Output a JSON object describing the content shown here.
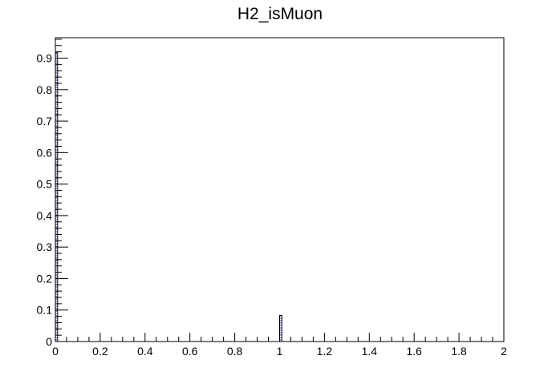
{
  "chart_data": {
    "type": "bar",
    "title": "H2_isMuon",
    "xlabel": "",
    "ylabel": "",
    "xlim": [
      0,
      2
    ],
    "ylim": [
      0,
      0.965
    ],
    "x_ticks": [
      0,
      0.2,
      0.4,
      0.6,
      0.8,
      1,
      1.2,
      1.4,
      1.6,
      1.8,
      2
    ],
    "x_tick_labels": [
      "0",
      "0.2",
      "0.4",
      "0.6",
      "0.8",
      "1",
      "1.2",
      "1.4",
      "1.6",
      "1.8",
      "2"
    ],
    "y_ticks": [
      0,
      0.1,
      0.2,
      0.3,
      0.4,
      0.5,
      0.6,
      0.7,
      0.8,
      0.9
    ],
    "y_tick_labels": [
      "0",
      "0.1",
      "0.2",
      "0.3",
      "0.4",
      "0.5",
      "0.6",
      "0.7",
      "0.8",
      "0.9"
    ],
    "bin_width": 0.01,
    "bars": [
      {
        "x": 0,
        "value": 0.917
      },
      {
        "x": 1,
        "value": 0.083
      }
    ],
    "grid": false,
    "legend": "none",
    "colors": {
      "bar_fill": "#ffffff",
      "bar_edge": "#000000",
      "bar_hatch": "#00007f",
      "axis": "#000000"
    }
  }
}
